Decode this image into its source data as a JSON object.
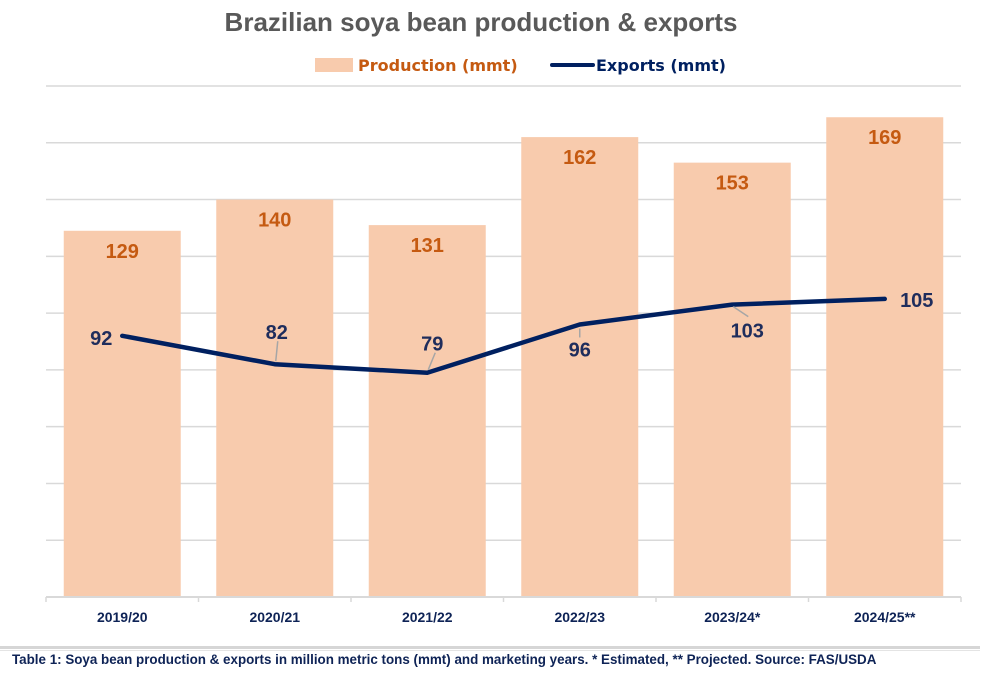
{
  "chart_data": {
    "type": "bar",
    "title": "Brazilian soya bean production & exports",
    "categories": [
      "2019/20",
      "2020/21",
      "2021/22",
      "2022/23",
      "2023/24*",
      "2024/25**"
    ],
    "series": [
      {
        "name": "Production (mmt)",
        "type": "bar",
        "color": "#F8CBAD",
        "label_color": "#C55A11",
        "values": [
          129,
          140,
          131,
          162,
          153,
          169
        ]
      },
      {
        "name": "Exports (mmt)",
        "type": "line",
        "color": "#002060",
        "label_color": "#1F2D5C",
        "values": [
          92,
          82,
          79,
          96,
          103,
          105
        ]
      }
    ],
    "xlabel": "",
    "ylabel": "",
    "ylim": [
      0,
      180
    ],
    "ytick_step": 20,
    "y_axis_labels_shown": false,
    "grid": true,
    "legend_position": "top-center"
  },
  "caption": "Table 1: Soya bean production & exports in million metric tons (mmt) and marketing years. * Estimated, ** Projected. Source: FAS/USDA",
  "colors": {
    "grid": "#D9D9D9",
    "title": "#595959",
    "axis_text": "#0E2356"
  }
}
